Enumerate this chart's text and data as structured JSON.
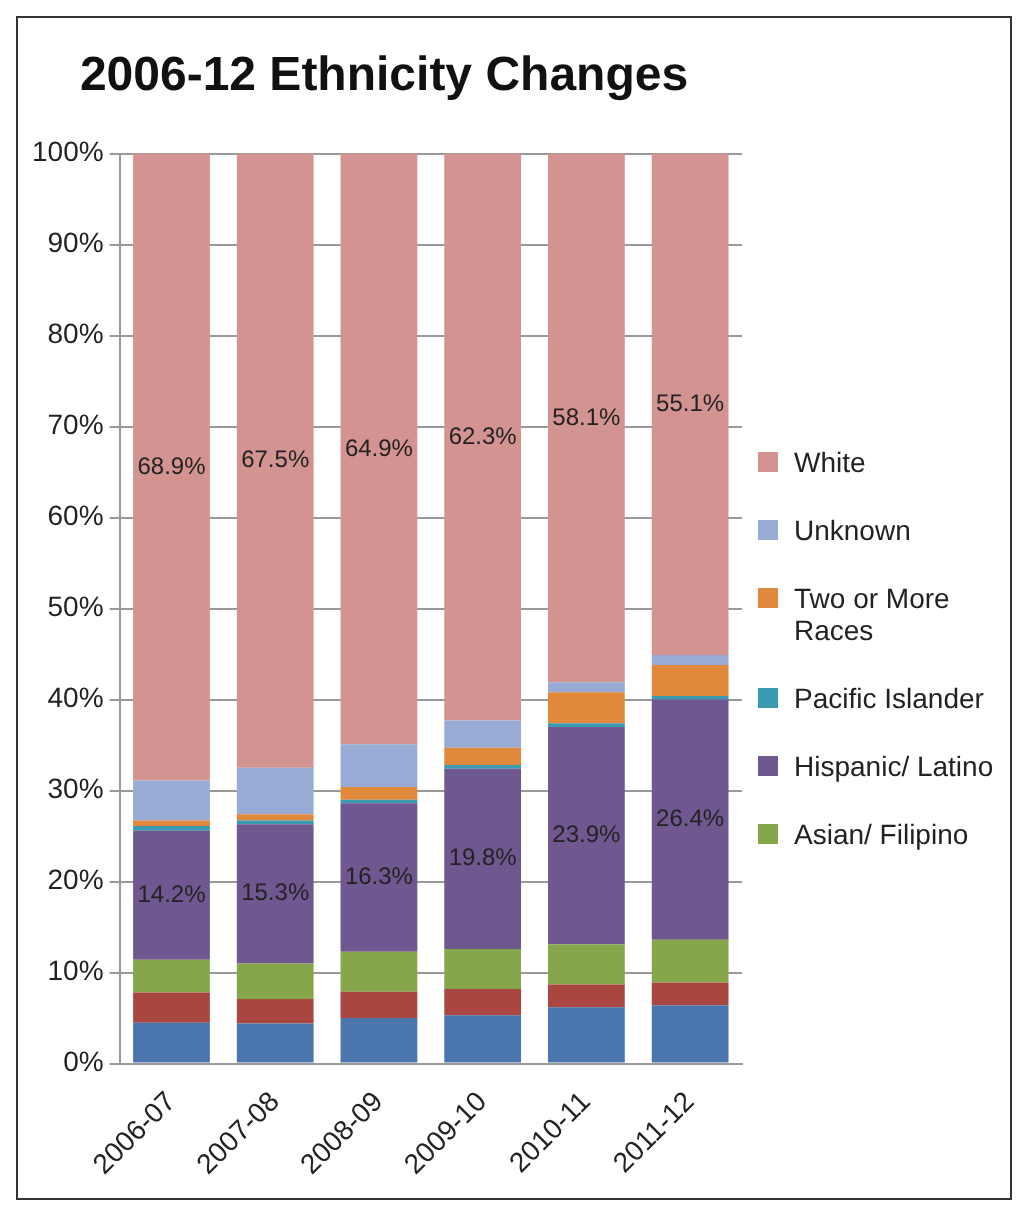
{
  "chart_data": {
    "type": "bar",
    "title": "2006-12 Ethnicity Changes",
    "stacked": true,
    "categories": [
      "2006-07",
      "2007-08",
      "2008-09",
      "2009-10",
      "2010-11",
      "2011-12"
    ],
    "series": [
      {
        "color": "#4a76ad",
        "values": [
          4.5,
          4.4,
          5.0,
          5.3,
          6.2,
          6.4
        ]
      },
      {
        "color": "#a9463f",
        "values": [
          3.3,
          2.7,
          2.9,
          2.9,
          2.5,
          2.5
        ]
      },
      {
        "name": "Asian/ Filipino",
        "color": "#86a64b",
        "values": [
          3.6,
          3.9,
          4.4,
          4.4,
          4.4,
          4.7
        ]
      },
      {
        "name": "Hispanic/ Latino",
        "color": "#6f578f",
        "values": [
          14.2,
          15.3,
          16.3,
          19.8,
          23.9,
          26.4
        ],
        "value_labels": [
          "14.2%",
          "15.3%",
          "16.3%",
          "19.8%",
          "23.9%",
          "26.4%"
        ]
      },
      {
        "name": "Pacific Islander",
        "color": "#3b9ab0",
        "values": [
          0.5,
          0.4,
          0.4,
          0.4,
          0.4,
          0.4
        ]
      },
      {
        "name": "Two or More Races",
        "color": "#e0883b",
        "values": [
          0.6,
          0.7,
          1.4,
          1.9,
          3.4,
          3.4
        ]
      },
      {
        "name": "Unknown",
        "color": "#97abd4",
        "values": [
          4.4,
          5.1,
          4.7,
          3.0,
          1.1,
          1.1
        ]
      },
      {
        "name": "White",
        "color": "#d29391",
        "values": [
          68.9,
          67.5,
          64.9,
          62.3,
          58.1,
          55.1
        ],
        "value_labels": [
          "68.9%",
          "67.5%",
          "64.9%",
          "62.3%",
          "58.1%",
          "55.1%"
        ]
      }
    ],
    "ylim": [
      0,
      100
    ],
    "yticks": [
      {
        "value": 0,
        "label": "0%"
      },
      {
        "value": 10,
        "label": "10%"
      },
      {
        "value": 20,
        "label": "20%"
      },
      {
        "value": 30,
        "label": "30%"
      },
      {
        "value": 40,
        "label": "40%"
      },
      {
        "value": 50,
        "label": "50%"
      },
      {
        "value": 60,
        "label": "60%"
      },
      {
        "value": 70,
        "label": "70%"
      },
      {
        "value": 80,
        "label": "80%"
      },
      {
        "value": 90,
        "label": "90%"
      },
      {
        "value": 100,
        "label": "100%"
      }
    ],
    "grid": "y",
    "legend": "right"
  }
}
